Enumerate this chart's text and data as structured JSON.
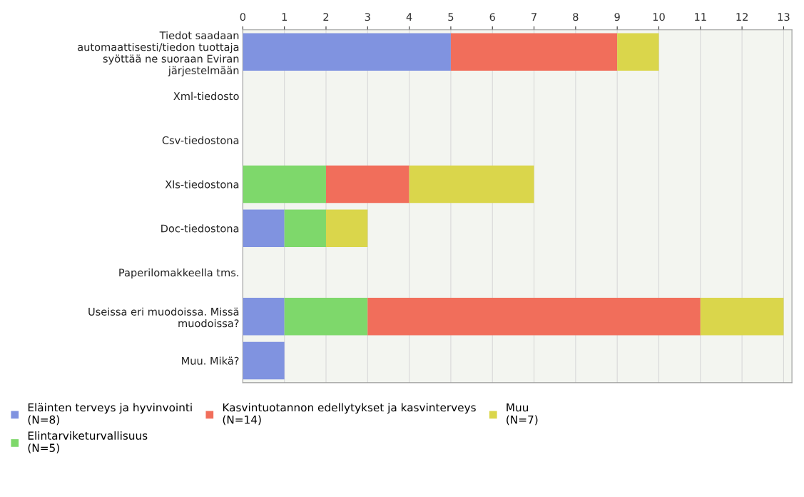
{
  "chart_data": {
    "type": "bar",
    "orientation": "horizontal",
    "stacked": true,
    "categories": [
      "Tiedot saadaan\nautomaattisesti/tiedon tuottaja\nsyöttää ne suoraan Eviran\njärjestelmään",
      "Xml-tiedosto",
      "Csv-tiedostona",
      "Xls-tiedostona",
      "Doc-tiedostona",
      "Paperilomakkeella tms.",
      "Useissa eri muodoissa. Missä\nmuodoissa?",
      "Muu. Mikä?"
    ],
    "series": [
      {
        "name": "Eläinten terveys ja hyvinvointi\n(N=8)",
        "color": "#8093e0",
        "values": [
          5,
          0,
          0,
          0,
          1,
          0,
          1,
          1
        ]
      },
      {
        "name": "Elintarviketurvallisuus\n(N=5)",
        "color": "#7ed86b",
        "values": [
          0,
          0,
          0,
          2,
          1,
          0,
          2,
          0
        ]
      },
      {
        "name": "Kasvintuotannon edellytykset ja kasvinterveys\n(N=14)",
        "color": "#f16e5b",
        "values": [
          4,
          0,
          0,
          2,
          0,
          0,
          8,
          0
        ]
      },
      {
        "name": "Muu\n(N=7)",
        "color": "#dad64b",
        "values": [
          1,
          0,
          0,
          3,
          1,
          0,
          2,
          0
        ]
      }
    ],
    "xlim": [
      0,
      13.2
    ],
    "xticks": [
      0,
      1,
      2,
      3,
      4,
      5,
      6,
      7,
      8,
      9,
      10,
      11,
      12,
      13
    ],
    "grid": "x",
    "legend": "bottom"
  }
}
